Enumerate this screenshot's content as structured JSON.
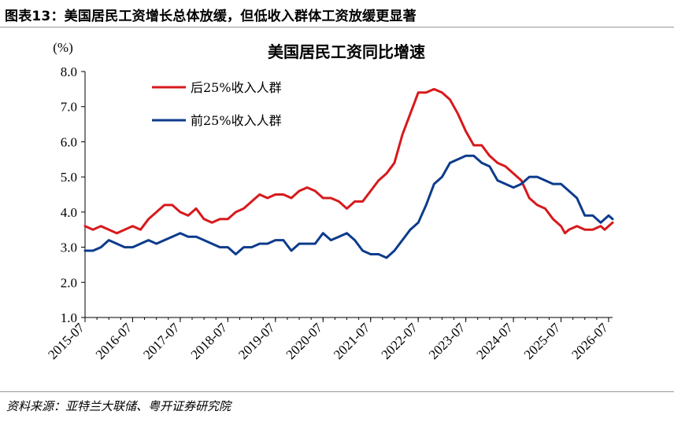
{
  "figure": {
    "caption": "图表13：美国居民工资增长总体放缓，但低收入群体工资放缓更显著",
    "source": "资料来源：亚特兰大联储、粤开证券研究院"
  },
  "chart_data": {
    "type": "line",
    "title": "美国居民工资同比增速",
    "ylabel": "(%)",
    "xlabel": "",
    "ylim": [
      1.0,
      8.0
    ],
    "yticks": [
      "1.0",
      "2.0",
      "3.0",
      "4.0",
      "5.0",
      "6.0",
      "7.0",
      "8.0"
    ],
    "xlim": [
      "2015-07",
      "2026-08"
    ],
    "xticks": [
      "2015-07",
      "2016-07",
      "2017-07",
      "2018-07",
      "2019-07",
      "2020-07",
      "2021-07",
      "2022-07",
      "2023-07",
      "2024-07",
      "2025-07",
      "2026-07"
    ],
    "grid": false,
    "legend_position": "top-left",
    "series": [
      {
        "name": "后25%收入人群",
        "color": "#d7191c",
        "points": [
          [
            "2015-07",
            3.6
          ],
          [
            "2015-09",
            3.5
          ],
          [
            "2015-11",
            3.6
          ],
          [
            "2016-01",
            3.5
          ],
          [
            "2016-03",
            3.4
          ],
          [
            "2016-05",
            3.5
          ],
          [
            "2016-07",
            3.6
          ],
          [
            "2016-09",
            3.5
          ],
          [
            "2016-11",
            3.8
          ],
          [
            "2017-01",
            4.0
          ],
          [
            "2017-03",
            4.2
          ],
          [
            "2017-05",
            4.2
          ],
          [
            "2017-07",
            4.0
          ],
          [
            "2017-09",
            3.9
          ],
          [
            "2017-11",
            4.1
          ],
          [
            "2018-01",
            3.8
          ],
          [
            "2018-03",
            3.7
          ],
          [
            "2018-05",
            3.8
          ],
          [
            "2018-07",
            3.8
          ],
          [
            "2018-09",
            4.0
          ],
          [
            "2018-11",
            4.1
          ],
          [
            "2019-01",
            4.3
          ],
          [
            "2019-03",
            4.5
          ],
          [
            "2019-05",
            4.4
          ],
          [
            "2019-07",
            4.5
          ],
          [
            "2019-09",
            4.5
          ],
          [
            "2019-11",
            4.4
          ],
          [
            "2020-01",
            4.6
          ],
          [
            "2020-03",
            4.7
          ],
          [
            "2020-05",
            4.6
          ],
          [
            "2020-07",
            4.4
          ],
          [
            "2020-09",
            4.4
          ],
          [
            "2020-11",
            4.3
          ],
          [
            "2021-01",
            4.1
          ],
          [
            "2021-03",
            4.3
          ],
          [
            "2021-05",
            4.3
          ],
          [
            "2021-07",
            4.6
          ],
          [
            "2021-09",
            4.9
          ],
          [
            "2021-11",
            5.1
          ],
          [
            "2022-01",
            5.4
          ],
          [
            "2022-03",
            6.2
          ],
          [
            "2022-05",
            6.8
          ],
          [
            "2022-07",
            7.4
          ],
          [
            "2022-09",
            7.4
          ],
          [
            "2022-11",
            7.5
          ],
          [
            "2023-01",
            7.4
          ],
          [
            "2023-03",
            7.2
          ],
          [
            "2023-05",
            6.8
          ],
          [
            "2023-07",
            6.3
          ],
          [
            "2023-09",
            5.9
          ],
          [
            "2023-11",
            5.9
          ],
          [
            "2024-01",
            5.6
          ],
          [
            "2024-03",
            5.4
          ],
          [
            "2024-05",
            5.3
          ],
          [
            "2024-07",
            5.1
          ],
          [
            "2024-09",
            4.9
          ],
          [
            "2024-11",
            4.4
          ],
          [
            "2025-01",
            4.2
          ],
          [
            "2025-03",
            4.1
          ],
          [
            "2025-05",
            3.8
          ],
          [
            "2025-07",
            3.6
          ],
          [
            "2025-08",
            3.4
          ],
          [
            "2025-09",
            3.5
          ],
          [
            "2025-11",
            3.6
          ],
          [
            "2026-01",
            3.5
          ],
          [
            "2026-03",
            3.5
          ],
          [
            "2026-05",
            3.6
          ],
          [
            "2026-06",
            3.5
          ],
          [
            "2026-07",
            3.6
          ],
          [
            "2026-08",
            3.7
          ]
        ]
      },
      {
        "name": "前25%收入人群",
        "color": "#0d3b8c",
        "points": [
          [
            "2015-07",
            2.9
          ],
          [
            "2015-09",
            2.9
          ],
          [
            "2015-11",
            3.0
          ],
          [
            "2016-01",
            3.2
          ],
          [
            "2016-03",
            3.1
          ],
          [
            "2016-05",
            3.0
          ],
          [
            "2016-07",
            3.0
          ],
          [
            "2016-09",
            3.1
          ],
          [
            "2016-11",
            3.2
          ],
          [
            "2017-01",
            3.1
          ],
          [
            "2017-03",
            3.2
          ],
          [
            "2017-05",
            3.3
          ],
          [
            "2017-07",
            3.4
          ],
          [
            "2017-09",
            3.3
          ],
          [
            "2017-11",
            3.3
          ],
          [
            "2018-01",
            3.2
          ],
          [
            "2018-03",
            3.1
          ],
          [
            "2018-05",
            3.0
          ],
          [
            "2018-07",
            3.0
          ],
          [
            "2018-09",
            2.8
          ],
          [
            "2018-11",
            3.0
          ],
          [
            "2019-01",
            3.0
          ],
          [
            "2019-03",
            3.1
          ],
          [
            "2019-05",
            3.1
          ],
          [
            "2019-07",
            3.2
          ],
          [
            "2019-09",
            3.2
          ],
          [
            "2019-11",
            2.9
          ],
          [
            "2020-01",
            3.1
          ],
          [
            "2020-03",
            3.1
          ],
          [
            "2020-05",
            3.1
          ],
          [
            "2020-07",
            3.4
          ],
          [
            "2020-09",
            3.2
          ],
          [
            "2020-11",
            3.3
          ],
          [
            "2021-01",
            3.4
          ],
          [
            "2021-03",
            3.2
          ],
          [
            "2021-05",
            2.9
          ],
          [
            "2021-07",
            2.8
          ],
          [
            "2021-09",
            2.8
          ],
          [
            "2021-11",
            2.7
          ],
          [
            "2022-01",
            2.9
          ],
          [
            "2022-03",
            3.2
          ],
          [
            "2022-05",
            3.5
          ],
          [
            "2022-07",
            3.7
          ],
          [
            "2022-09",
            4.2
          ],
          [
            "2022-11",
            4.8
          ],
          [
            "2023-01",
            5.0
          ],
          [
            "2023-03",
            5.4
          ],
          [
            "2023-05",
            5.5
          ],
          [
            "2023-07",
            5.6
          ],
          [
            "2023-09",
            5.6
          ],
          [
            "2023-11",
            5.4
          ],
          [
            "2024-01",
            5.3
          ],
          [
            "2024-03",
            4.9
          ],
          [
            "2024-05",
            4.8
          ],
          [
            "2024-07",
            4.7
          ],
          [
            "2024-09",
            4.8
          ],
          [
            "2024-11",
            5.0
          ],
          [
            "2025-01",
            5.0
          ],
          [
            "2025-03",
            4.9
          ],
          [
            "2025-05",
            4.8
          ],
          [
            "2025-07",
            4.8
          ],
          [
            "2025-09",
            4.6
          ],
          [
            "2025-11",
            4.4
          ],
          [
            "2026-01",
            3.9
          ],
          [
            "2026-03",
            3.9
          ],
          [
            "2026-05",
            3.7
          ],
          [
            "2026-07",
            3.9
          ],
          [
            "2026-08",
            3.8
          ]
        ]
      }
    ]
  }
}
